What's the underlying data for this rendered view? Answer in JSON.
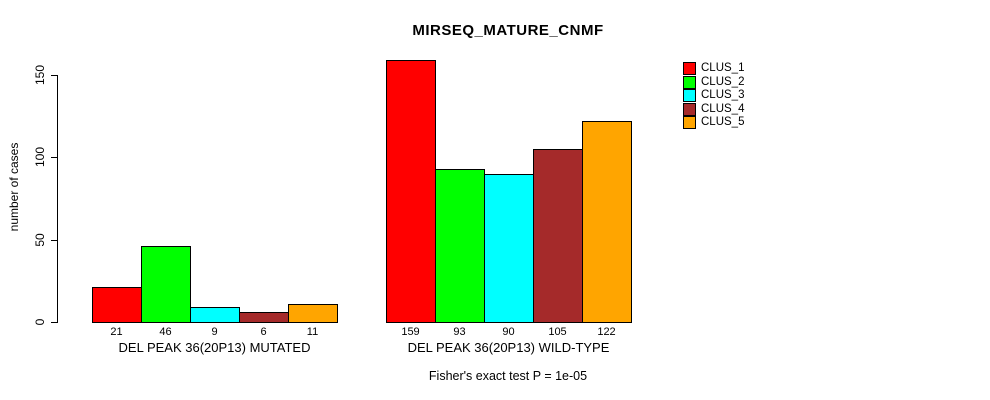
{
  "chart_data": {
    "type": "bar",
    "title": "MIRSEQ_MATURE_CNMF",
    "xlabel": "",
    "ylabel": "number of cases",
    "ylim": [
      0,
      150
    ],
    "yticks": [
      0,
      50,
      100,
      150
    ],
    "grid": false,
    "legend_position": "top-right",
    "categories": [
      "DEL PEAK 36(20P13) MUTATED",
      "DEL PEAK 36(20P13) WILD-TYPE"
    ],
    "series": [
      {
        "name": "CLUS_1",
        "color": "#FF0000",
        "values": [
          21,
          159
        ]
      },
      {
        "name": "CLUS_2",
        "color": "#00FF00",
        "values": [
          46,
          93
        ]
      },
      {
        "name": "CLUS_3",
        "color": "#00FFFF",
        "values": [
          9,
          90
        ]
      },
      {
        "name": "CLUS_4",
        "color": "#A52A2A",
        "values": [
          6,
          105
        ]
      },
      {
        "name": "CLUS_5",
        "color": "#FFA500",
        "values": [
          11,
          122
        ]
      }
    ],
    "bar_value_labels": [
      [
        21,
        46,
        9,
        6,
        11
      ],
      [
        159,
        93,
        90,
        105,
        122
      ]
    ],
    "annotation": "Fisher's exact test P = 1e-05"
  }
}
